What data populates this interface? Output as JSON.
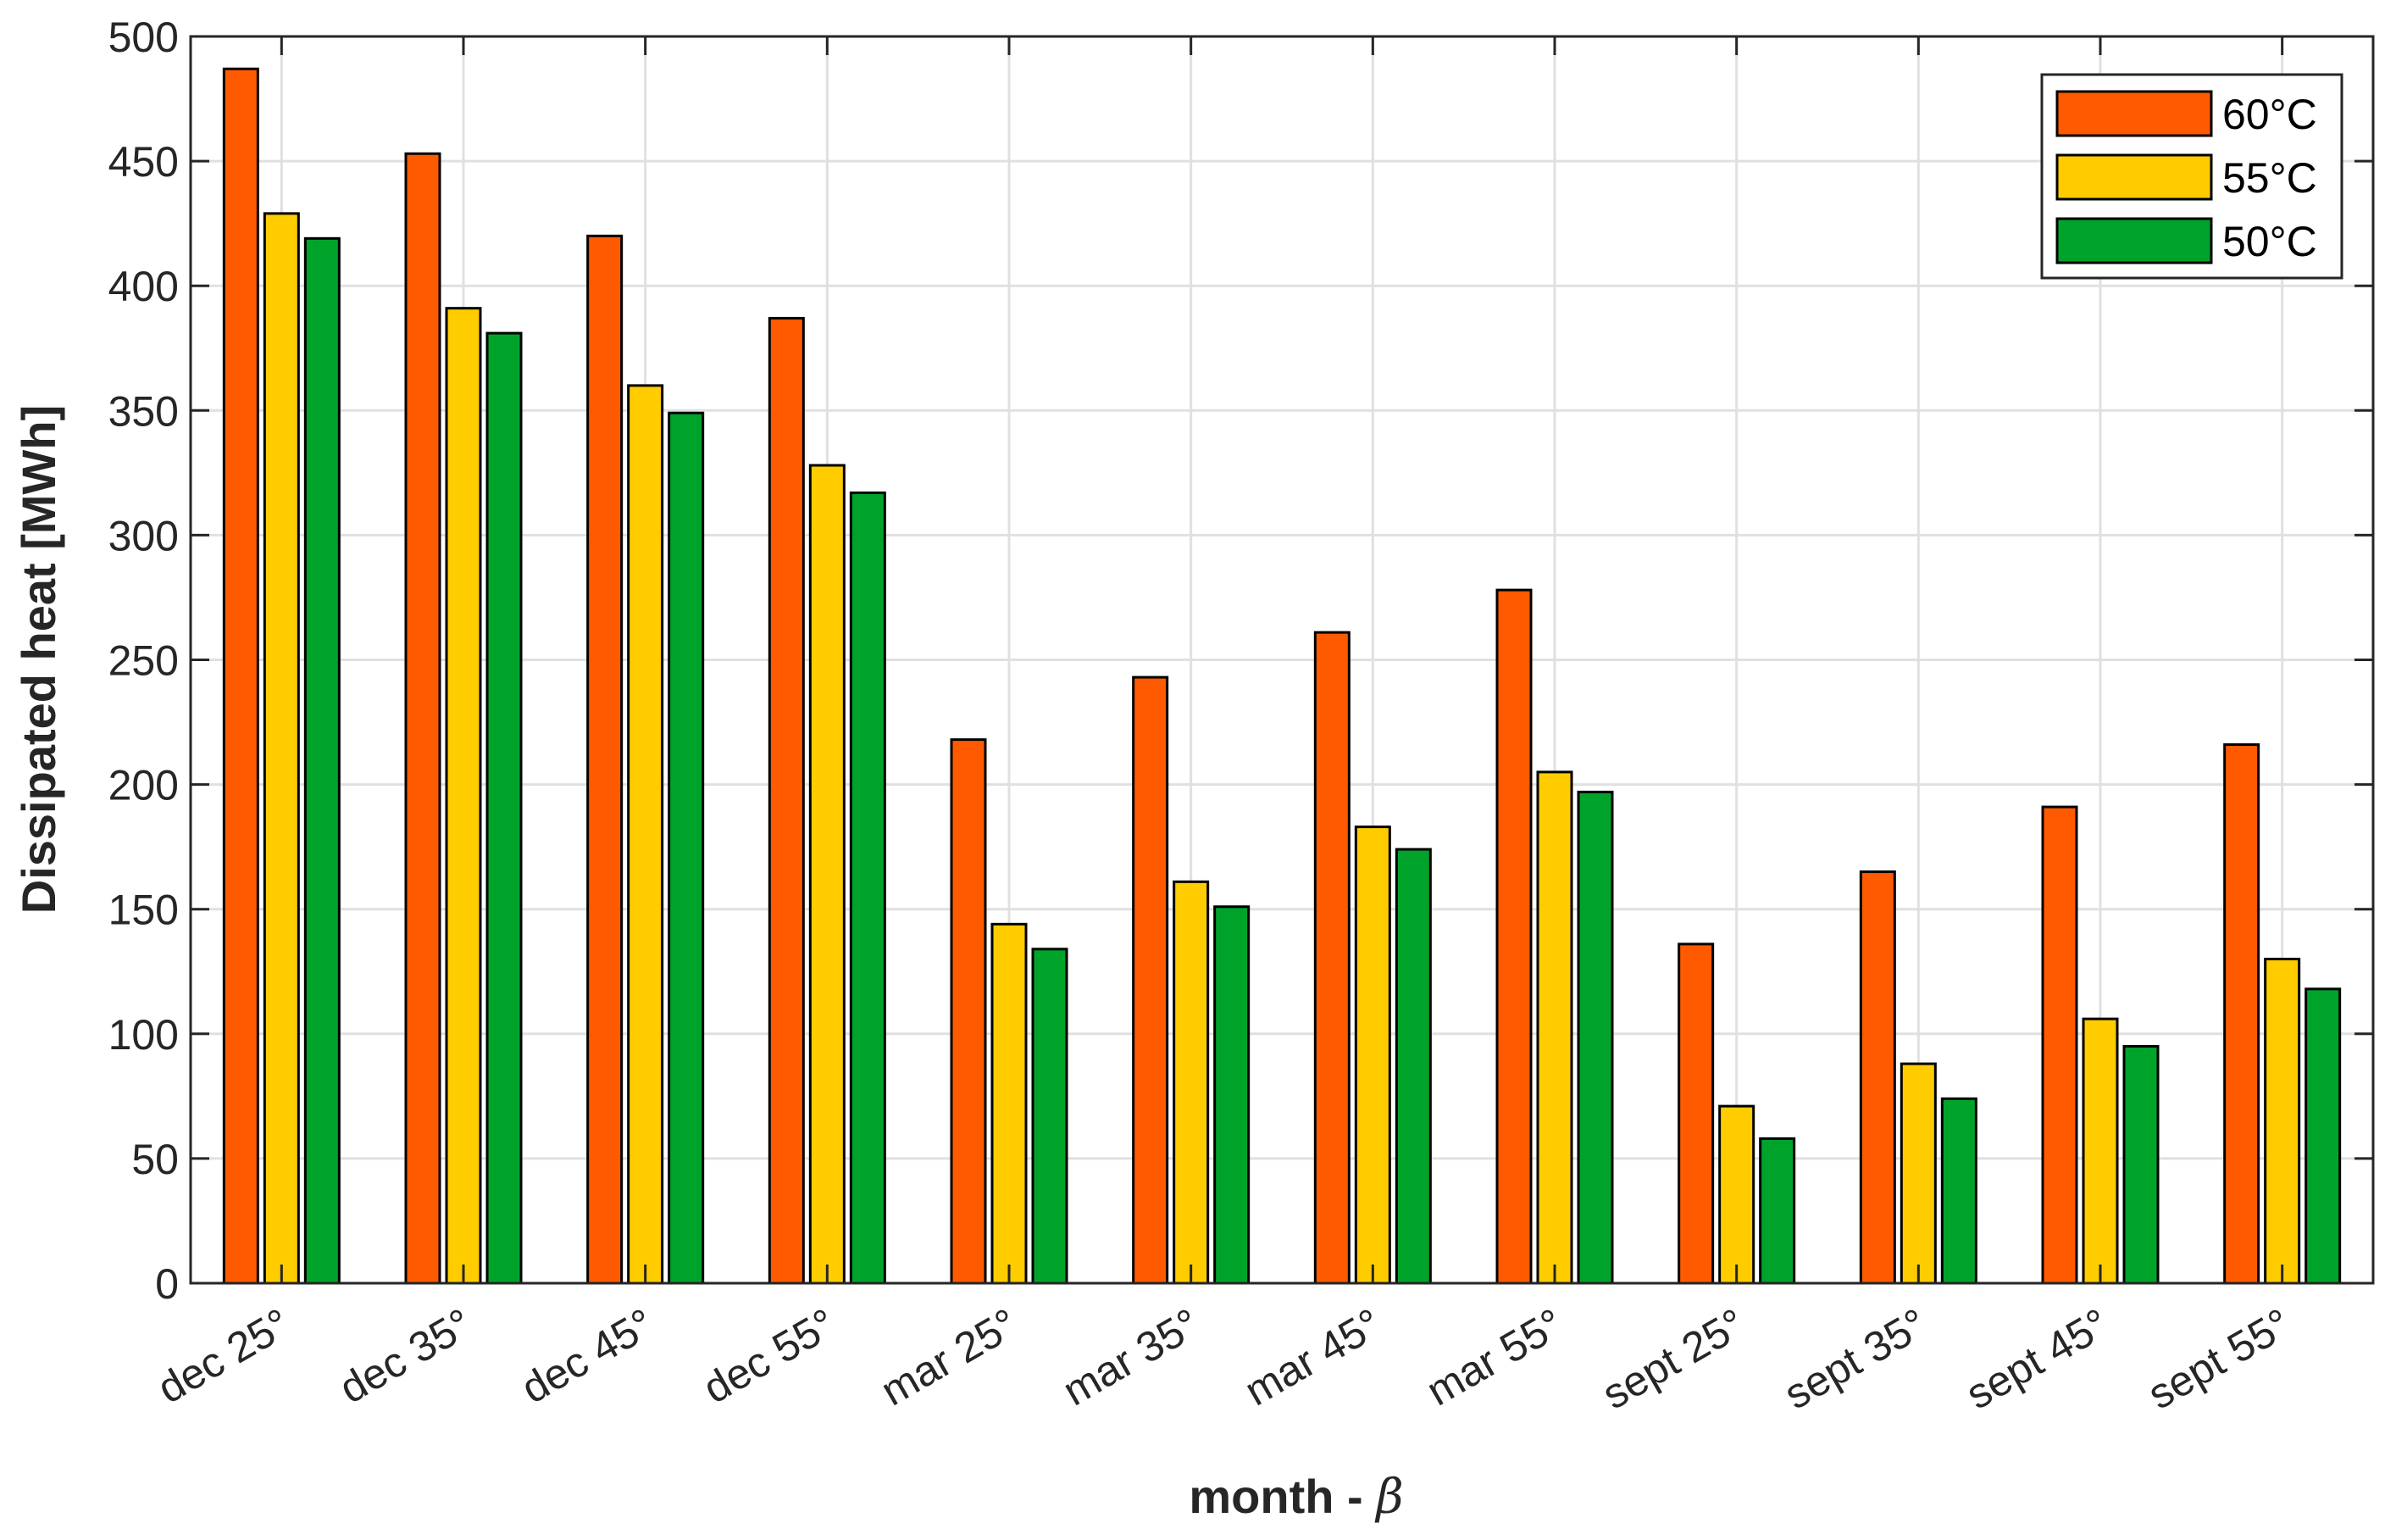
{
  "chart_data": {
    "type": "bar",
    "xlabel": "month - ",
    "xlabel_symbol": "β",
    "ylabel": "Dissipated heat [MWh]",
    "ylim": [
      0,
      500
    ],
    "yticks": [
      0,
      50,
      100,
      150,
      200,
      250,
      300,
      350,
      400,
      450,
      500
    ],
    "grid": true,
    "legend_position": "top-right",
    "categories": [
      "dec 25°",
      "dec 35°",
      "dec 45°",
      "dec 55°",
      "mar 25°",
      "mar 35°",
      "mar 45°",
      "mar 55°",
      "sept 25°",
      "sept 35°",
      "sept 45°",
      "sept 55°"
    ],
    "series": [
      {
        "name": "60°C",
        "color": "#ff5a00",
        "values": [
          487,
          453,
          420,
          387,
          218,
          243,
          261,
          278,
          136,
          165,
          191,
          216
        ]
      },
      {
        "name": "55°C",
        "color": "#ffcc00",
        "values": [
          429,
          391,
          360,
          328,
          144,
          161,
          183,
          205,
          71,
          88,
          106,
          130
        ]
      },
      {
        "name": "50°C",
        "color": "#00a32a",
        "values": [
          419,
          381,
          349,
          317,
          134,
          151,
          174,
          197,
          58,
          74,
          95,
          118
        ]
      }
    ]
  }
}
